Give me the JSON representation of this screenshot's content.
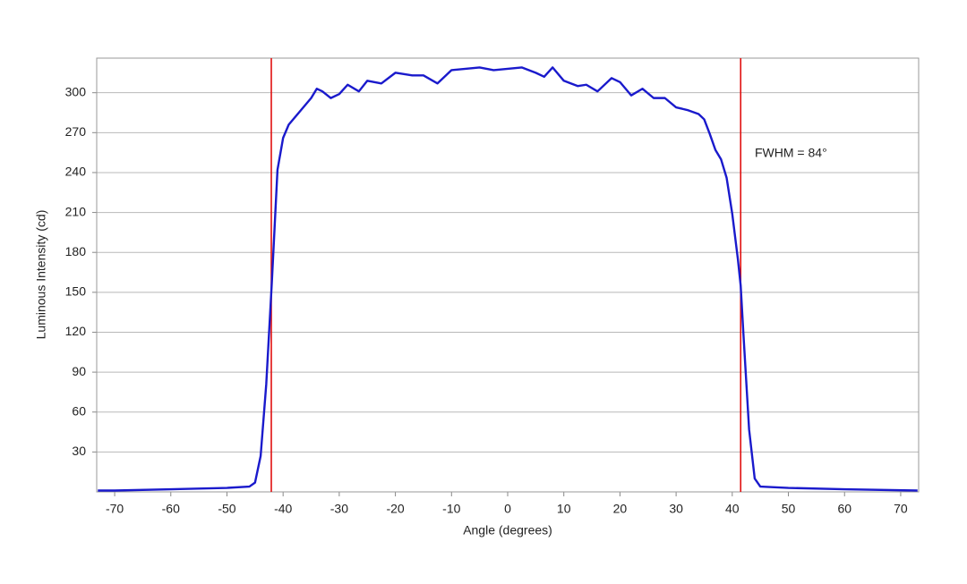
{
  "chart_data": {
    "type": "line",
    "xlabel": "Angle (degrees)",
    "ylabel": "Luminous Intensity (cd)",
    "annotation": "FWHM = 84°",
    "x": [
      -73,
      -70,
      -60,
      -50,
      -46,
      -45,
      -44,
      -43,
      -42,
      -41,
      -40,
      -39,
      -37,
      -35,
      -34,
      -33,
      -31.5,
      -30,
      -28.5,
      -26.5,
      -25,
      -22.5,
      -20,
      -17,
      -15,
      -12.5,
      -10,
      -7.5,
      -5,
      -2.5,
      0,
      2.5,
      5,
      6.5,
      8,
      10,
      12.5,
      14,
      16,
      18.5,
      20,
      22,
      24,
      26,
      28,
      30,
      32,
      34,
      35,
      36,
      37,
      38,
      39,
      40,
      41,
      41.5,
      42,
      43,
      44,
      45,
      50,
      60,
      73
    ],
    "series": [
      {
        "color": "#1a1acc",
        "values": [
          1,
          1,
          2,
          3,
          4,
          7,
          27,
          81,
          158,
          242,
          266,
          276,
          286,
          296,
          303,
          301,
          296,
          299,
          306,
          301,
          309,
          307,
          315,
          313,
          313,
          307,
          317,
          318,
          319,
          317,
          318,
          319,
          315,
          312,
          319,
          309,
          305,
          306,
          301,
          311,
          308,
          298,
          303,
          296,
          296,
          289,
          287,
          284,
          280,
          269,
          257,
          250,
          236,
          209,
          175,
          155,
          118,
          47,
          10,
          4,
          3,
          2,
          1
        ]
      }
    ],
    "vlines": [
      -42.1,
      41.5
    ],
    "vline_color": "#e01010",
    "xlim": [
      -73.2,
      73.2
    ],
    "ylim": [
      0,
      326
    ],
    "xticks": [
      -70,
      -60,
      -50,
      -40,
      -30,
      -20,
      -10,
      0,
      10,
      20,
      30,
      40,
      50,
      60,
      70
    ],
    "yticks": [
      30,
      60,
      90,
      120,
      150,
      180,
      210,
      240,
      270,
      300
    ],
    "grid": true
  }
}
